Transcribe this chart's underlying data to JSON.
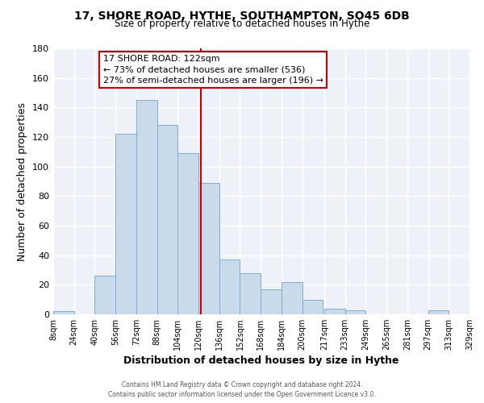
{
  "title": "17, SHORE ROAD, HYTHE, SOUTHAMPTON, SO45 6DB",
  "subtitle": "Size of property relative to detached houses in Hythe",
  "xlabel": "Distribution of detached houses by size in Hythe",
  "ylabel": "Number of detached properties",
  "bar_color": "#c9daea",
  "bar_edge_color": "#7bafd4",
  "background_color": "#eef2f8",
  "grid_color": "white",
  "vline_x": 122,
  "vline_color": "#cc0000",
  "bin_edges": [
    8,
    24,
    40,
    56,
    72,
    88,
    104,
    120,
    136,
    152,
    168,
    184,
    200,
    217,
    233,
    249,
    265,
    281,
    297,
    313,
    329
  ],
  "bar_heights": [
    2,
    0,
    26,
    122,
    145,
    128,
    109,
    89,
    37,
    28,
    17,
    22,
    10,
    4,
    3,
    0,
    0,
    0,
    3,
    0
  ],
  "tick_labels": [
    "8sqm",
    "24sqm",
    "40sqm",
    "56sqm",
    "72sqm",
    "88sqm",
    "104sqm",
    "120sqm",
    "136sqm",
    "152sqm",
    "168sqm",
    "184sqm",
    "200sqm",
    "217sqm",
    "233sqm",
    "249sqm",
    "265sqm",
    "281sqm",
    "297sqm",
    "313sqm",
    "329sqm"
  ],
  "ylim": [
    0,
    180
  ],
  "yticks": [
    0,
    20,
    40,
    60,
    80,
    100,
    120,
    140,
    160,
    180
  ],
  "ann_line1": "17 SHORE ROAD: 122sqm",
  "ann_line2": "← 73% of detached houses are smaller (536)",
  "ann_line3": "27% of semi-detached houses are larger (196) →",
  "footer_line1": "Contains HM Land Registry data © Crown copyright and database right 2024.",
  "footer_line2": "Contains public sector information licensed under the Open Government Licence v3.0."
}
